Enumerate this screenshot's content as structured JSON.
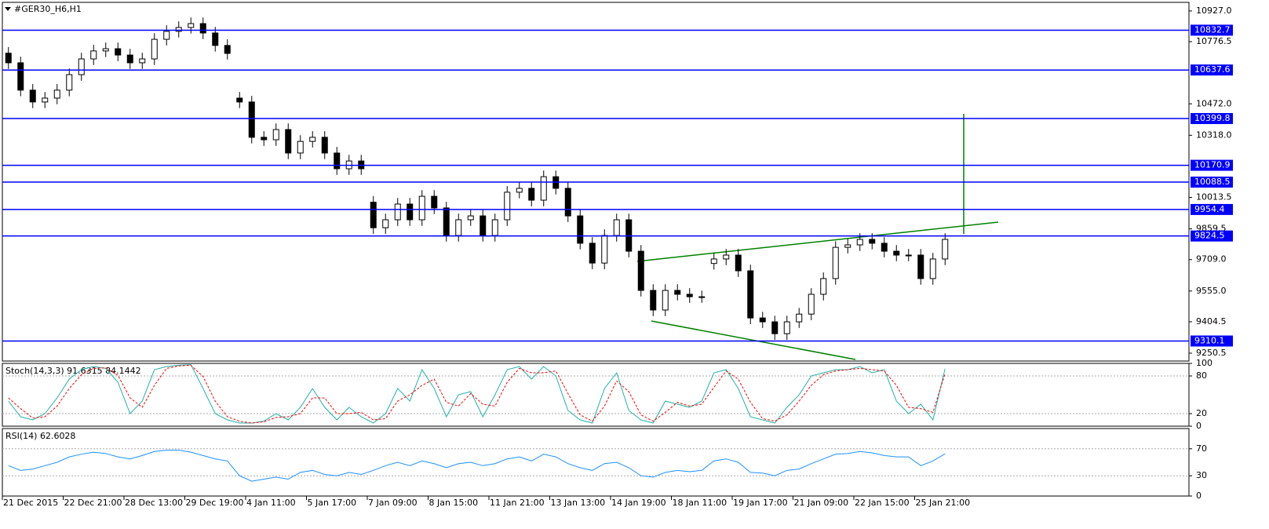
{
  "chart_data": [
    {
      "type": "candlestick",
      "title": "#GER30_H6,H1",
      "categories": [
        "21 Dec 2015",
        null,
        null,
        null,
        null,
        "22 Dec 21:00",
        null,
        null,
        null,
        null,
        "28 Dec 13:00",
        null,
        null,
        null,
        null,
        "29 Dec 19:00",
        null,
        null,
        null,
        null,
        "4 Jan 11:00",
        null,
        null,
        null,
        null,
        "5 Jan 17:00",
        null,
        null,
        null,
        null,
        "7 Jan 09:00",
        null,
        null,
        null,
        null,
        "8 Jan 15:00",
        null,
        null,
        null,
        null,
        "11 Jan 21:00",
        null,
        null,
        null,
        null,
        "13 Jan 13:00",
        null,
        null,
        null,
        null,
        "14 Jan 19:00",
        null,
        null,
        null,
        null,
        "18 Jan 11:00",
        null,
        null,
        null,
        null,
        "19 Jan 17:00",
        null,
        null,
        null,
        null,
        "21 Jan 09:00",
        null,
        null,
        null,
        null,
        "22 Jan 15:00",
        null,
        null,
        null,
        null,
        "25 Jan 21:00",
        null,
        null
      ],
      "open": [
        10720,
        10673,
        10539,
        10481,
        10500,
        10539,
        10615,
        10692,
        10731,
        10742,
        10711,
        10673,
        10692,
        10788,
        10827,
        10846,
        10865,
        10819,
        10758,
        10500,
        10481,
        10308,
        10296,
        10346,
        10231,
        10288,
        10308,
        10231,
        10154,
        10192,
        9990,
        9865,
        9904,
        9981,
        9904,
        10019,
        9962,
        9827,
        9904,
        9923,
        9827,
        9904,
        10039,
        10058,
        10000,
        10115,
        10058,
        9923,
        9789,
        9692,
        9827,
        9904,
        9750,
        9558,
        9462,
        9558,
        9539,
        9527,
        9690,
        9712,
        9731,
        9654,
        9423,
        9404,
        9346,
        9404,
        9442,
        9539,
        9616,
        9769,
        9781,
        9808,
        9789,
        9750,
        9731,
        9731,
        9616,
        9712
      ],
      "high": [
        10750,
        10703,
        10569,
        10530,
        10569,
        10645,
        10722,
        10761,
        10772,
        10772,
        10741,
        10722,
        10818,
        10857,
        10876,
        10895,
        10895,
        10849,
        10788,
        10530,
        10511,
        10338,
        10376,
        10376,
        10318,
        10338,
        10338,
        10261,
        10222,
        10222,
        10020,
        9934,
        10011,
        10011,
        10049,
        10049,
        9992,
        9934,
        9953,
        9953,
        9934,
        10069,
        10088,
        10088,
        10145,
        10145,
        10088,
        9953,
        9819,
        9857,
        9934,
        9934,
        9780,
        9588,
        9588,
        9588,
        9569,
        9557,
        9742,
        9761,
        9761,
        9684,
        9453,
        9434,
        9434,
        9472,
        9569,
        9646,
        9799,
        9811,
        9838,
        9838,
        9819,
        9780,
        9761,
        9761,
        9742,
        9838
      ],
      "low": [
        10643,
        10509,
        10451,
        10451,
        10470,
        10509,
        10585,
        10662,
        10701,
        10681,
        10643,
        10643,
        10662,
        10758,
        10797,
        10816,
        10789,
        10728,
        10689,
        10451,
        10278,
        10266,
        10266,
        10201,
        10201,
        10258,
        10201,
        10124,
        10124,
        10124,
        9835,
        9835,
        9874,
        9874,
        9874,
        9932,
        9797,
        9797,
        9874,
        9797,
        9797,
        9874,
        10009,
        9970,
        9970,
        10028,
        9893,
        9759,
        9662,
        9662,
        9797,
        9720,
        9528,
        9432,
        9432,
        9509,
        9497,
        9497,
        9660,
        9682,
        9624,
        9393,
        9374,
        9316,
        9316,
        9374,
        9412,
        9509,
        9586,
        9739,
        9751,
        9759,
        9720,
        9701,
        9701,
        9586,
        9586,
        9682
      ],
      "close": [
        10673,
        10539,
        10481,
        10500,
        10539,
        10615,
        10692,
        10731,
        10742,
        10711,
        10673,
        10692,
        10788,
        10827,
        10846,
        10865,
        10819,
        10758,
        10719,
        10481,
        10308,
        10296,
        10346,
        10231,
        10288,
        10308,
        10231,
        10154,
        10192,
        10154,
        9865,
        9904,
        9981,
        9904,
        10019,
        9962,
        9827,
        9904,
        9923,
        9827,
        9904,
        10039,
        10058,
        10000,
        10115,
        10058,
        9923,
        9789,
        9692,
        9827,
        9904,
        9750,
        9558,
        9462,
        9558,
        9539,
        9527,
        9527,
        9712,
        9731,
        9654,
        9423,
        9404,
        9346,
        9404,
        9442,
        9539,
        9616,
        9769,
        9781,
        9808,
        9789,
        9750,
        9731,
        9731,
        9616,
        9712,
        9808
      ],
      "levels": [
        10832.7,
        10637.6,
        10399.8,
        10170.9,
        10088.5,
        9954.4,
        9824.5,
        9310.1
      ],
      "level_color": "#0000ff",
      "ylim": [
        9212,
        10969
      ],
      "yticks": [
        {
          "value": 10927,
          "label": "10927.0"
        },
        10776.5,
        {
          "value": 10472,
          "label": "10472.0"
        },
        {
          "value": 10318,
          "label": "10318.0"
        },
        10013.5,
        9859.5,
        {
          "value": 9709,
          "label": "9709.0"
        },
        {
          "value": 9555,
          "label": "9555.0"
        },
        9404.5,
        9250.5
      ]
    },
    {
      "type": "line",
      "title": "Stoch(14,3,3) 91.6315 84.1442",
      "series": [
        {
          "color": "#20b2aa",
          "values": [
            40,
            15,
            10,
            20,
            45,
            75,
            90,
            95,
            92,
            70,
            20,
            40,
            90,
            95,
            97,
            98,
            60,
            20,
            10,
            5,
            5,
            8,
            20,
            10,
            30,
            60,
            30,
            10,
            30,
            15,
            5,
            20,
            60,
            40,
            90,
            60,
            15,
            50,
            55,
            15,
            50,
            90,
            95,
            75,
            95,
            80,
            25,
            10,
            5,
            60,
            85,
            25,
            10,
            5,
            40,
            35,
            30,
            40,
            85,
            90,
            60,
            15,
            10,
            5,
            30,
            50,
            80,
            85,
            90,
            90,
            95,
            85,
            90,
            40,
            20,
            35,
            10,
            91.6315
          ]
        },
        {
          "color": "#ff0000",
          "dashed": true,
          "values": [
            45,
            28,
            13,
            15,
            32,
            60,
            82,
            92,
            93,
            81,
            45,
            30,
            65,
            92,
            96,
            97,
            79,
            40,
            15,
            8,
            5,
            7,
            14,
            15,
            20,
            45,
            45,
            20,
            20,
            22,
            10,
            12,
            40,
            50,
            65,
            75,
            38,
            32,
            52,
            35,
            32,
            70,
            92,
            85,
            85,
            88,
            52,
            18,
            8,
            32,
            72,
            55,
            18,
            8,
            22,
            38,
            32,
            35,
            62,
            88,
            75,
            38,
            12,
            8,
            18,
            40,
            65,
            82,
            88,
            90,
            92,
            90,
            88,
            65,
            30,
            28,
            22,
            84.1442
          ]
        }
      ],
      "levels": [
        80,
        20
      ],
      "ylim": [
        0,
        100
      ],
      "yticks": [
        100,
        80,
        20,
        0
      ]
    },
    {
      "type": "line",
      "title": "RSI(14) 62.6028",
      "series": [
        {
          "color": "#1e90ff",
          "values": [
            45,
            38,
            40,
            45,
            50,
            58,
            62,
            65,
            63,
            58,
            55,
            60,
            66,
            68,
            68,
            65,
            60,
            55,
            52,
            30,
            22,
            25,
            28,
            25,
            35,
            38,
            32,
            30,
            35,
            32,
            38,
            45,
            50,
            45,
            52,
            48,
            42,
            48,
            50,
            45,
            48,
            55,
            58,
            52,
            62,
            58,
            48,
            42,
            38,
            48,
            50,
            42,
            30,
            28,
            35,
            38,
            36,
            38,
            52,
            55,
            50,
            35,
            34,
            30,
            38,
            40,
            48,
            55,
            62,
            63,
            66,
            64,
            60,
            58,
            58,
            45,
            52,
            62.6028
          ]
        }
      ],
      "levels": [
        70,
        30
      ],
      "ylim": [
        0,
        100
      ],
      "yticks": [
        70,
        30,
        0
      ]
    }
  ]
}
